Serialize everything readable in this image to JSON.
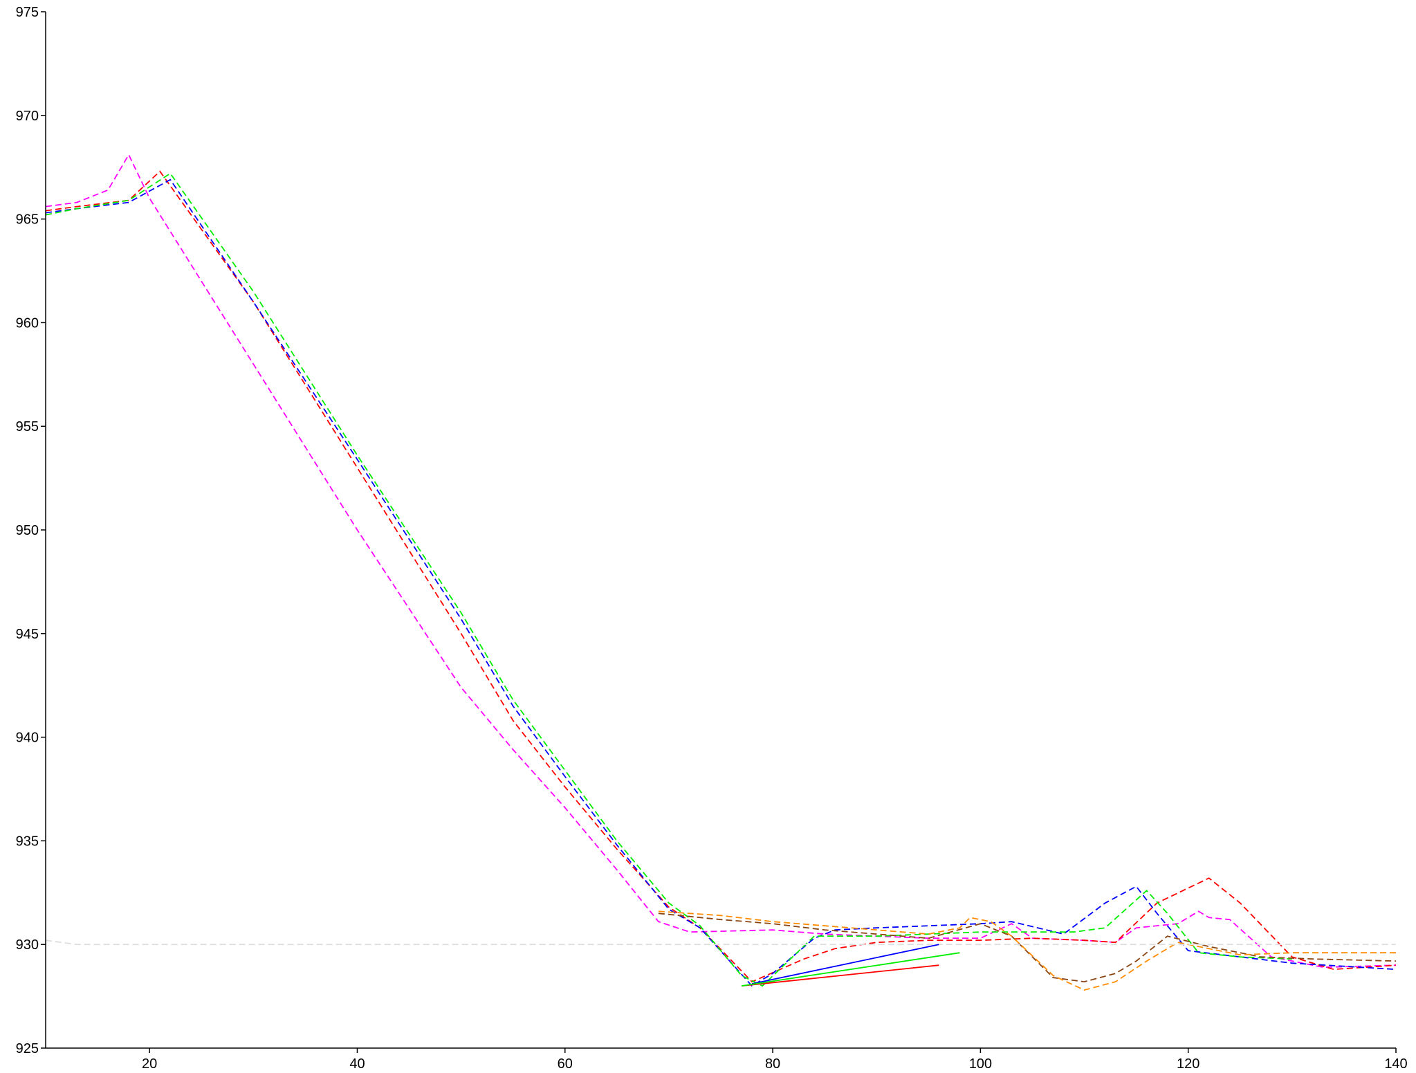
{
  "chart_data": {
    "type": "line",
    "xlim": [
      10,
      140
    ],
    "ylim": [
      925,
      975
    ],
    "x_ticks": [
      20,
      40,
      60,
      80,
      100,
      120,
      140
    ],
    "y_ticks": [
      925,
      930,
      935,
      940,
      945,
      950,
      955,
      960,
      965,
      970,
      975
    ],
    "grid": false,
    "legend": "none",
    "series": [
      {
        "color": "#ff00ff",
        "dashed": true,
        "x": [
          10,
          13,
          16,
          18,
          20,
          25,
          30,
          35,
          40,
          45,
          50,
          55,
          60,
          65,
          69,
          72,
          80,
          85,
          90,
          95,
          100,
          103,
          105,
          110,
          113,
          115,
          119,
          121,
          122,
          124,
          128,
          133,
          140
        ],
        "y": [
          965.6,
          965.8,
          966.4,
          968.1,
          966.0,
          962.0,
          958.0,
          954.0,
          950.0,
          946.2,
          942.4,
          939.4,
          936.6,
          933.6,
          931.1,
          930.6,
          930.7,
          930.5,
          930.4,
          930.3,
          930.3,
          931.0,
          930.3,
          930.2,
          930.1,
          930.8,
          931.0,
          931.6,
          931.3,
          931.2,
          929.4,
          928.9,
          929.0
        ]
      },
      {
        "color": "#ff0000",
        "dashed": true,
        "x": [
          10,
          13,
          18,
          21,
          30,
          40,
          50,
          55,
          60,
          65,
          70,
          73,
          78,
          83,
          86,
          90,
          95,
          100,
          105,
          110,
          113,
          117,
          122,
          125,
          130,
          134,
          140
        ],
        "y": [
          965.4,
          965.6,
          965.9,
          967.3,
          961.0,
          953.0,
          945.0,
          940.8,
          937.6,
          934.6,
          931.8,
          930.8,
          928.2,
          929.3,
          929.8,
          930.1,
          930.2,
          930.2,
          930.3,
          930.2,
          930.1,
          932.0,
          933.2,
          932.0,
          929.4,
          928.8,
          929.0
        ]
      },
      {
        "color": "#0000ff",
        "dashed": true,
        "x": [
          10,
          13,
          18,
          22,
          30,
          40,
          50,
          55,
          60,
          65,
          70,
          73,
          78,
          80,
          84,
          86,
          90,
          95,
          100,
          103,
          108,
          112,
          115,
          117,
          120,
          125,
          130,
          140
        ],
        "y": [
          965.3,
          965.5,
          965.8,
          966.9,
          961.0,
          953.4,
          945.7,
          941.5,
          938.1,
          934.8,
          931.7,
          930.8,
          928.0,
          928.6,
          930.3,
          930.7,
          930.8,
          930.9,
          931.0,
          931.1,
          930.5,
          932.0,
          932.8,
          931.5,
          929.7,
          929.4,
          929.1,
          928.8
        ]
      },
      {
        "color": "#00ee00",
        "dashed": true,
        "x": [
          10,
          13,
          18,
          22,
          30,
          40,
          50,
          55,
          60,
          65,
          70,
          73,
          77,
          79,
          84,
          90,
          95,
          100,
          105,
          109,
          112,
          116,
          118,
          121,
          125,
          130
        ],
        "y": [
          965.2,
          965.5,
          965.9,
          967.2,
          961.5,
          953.6,
          946.0,
          941.8,
          938.4,
          935.0,
          932.0,
          930.9,
          928.5,
          928.0,
          930.4,
          930.4,
          930.5,
          930.6,
          930.6,
          930.6,
          930.8,
          932.6,
          931.5,
          929.6,
          929.4,
          929.3
        ]
      },
      {
        "color": "#8b4513",
        "dashed": true,
        "x": [
          69,
          75,
          80,
          85,
          90,
          95,
          100,
          103,
          107,
          110,
          113,
          115,
          118,
          122,
          127,
          132,
          140
        ],
        "y": [
          931.5,
          931.2,
          931.0,
          930.7,
          930.5,
          930.3,
          931.0,
          930.4,
          928.4,
          928.2,
          928.6,
          929.2,
          930.4,
          929.9,
          929.4,
          929.3,
          929.2
        ]
      },
      {
        "color": "#ff8c00",
        "dashed": true,
        "x": [
          69,
          75,
          80,
          85,
          90,
          95,
          98,
          99,
          101,
          103,
          107,
          110,
          113,
          116,
          119,
          125,
          130,
          135,
          140
        ],
        "y": [
          931.6,
          931.4,
          931.1,
          930.9,
          930.7,
          930.5,
          930.8,
          931.3,
          931.1,
          930.4,
          928.5,
          927.8,
          928.2,
          929.2,
          930.1,
          929.5,
          929.6,
          929.6,
          929.6
        ]
      },
      {
        "color": "#dddddd",
        "dashed": true,
        "x": [
          10,
          13,
          20,
          40,
          60,
          80,
          100,
          120,
          140
        ],
        "y": [
          930.2,
          930.0,
          930.0,
          930.0,
          930.0,
          930.0,
          930.0,
          930.0,
          930.0
        ]
      },
      {
        "color": "#ff0000",
        "dashed": false,
        "x": [
          77,
          96
        ],
        "y": [
          928.0,
          929.0
        ]
      },
      {
        "color": "#0000ff",
        "dashed": false,
        "x": [
          78,
          96
        ],
        "y": [
          928.1,
          930.0
        ]
      },
      {
        "color": "#00ee00",
        "dashed": false,
        "x": [
          77,
          98
        ],
        "y": [
          928.0,
          929.6
        ]
      }
    ]
  }
}
